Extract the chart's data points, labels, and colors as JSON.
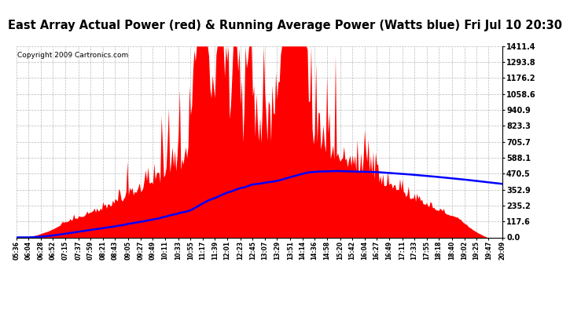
{
  "title": "East Array Actual Power (red) & Running Average Power (Watts blue) Fri Jul 10 20:30",
  "copyright": "Copyright 2009 Cartronics.com",
  "yticks": [
    0.0,
    117.6,
    235.2,
    352.9,
    470.5,
    588.1,
    705.7,
    823.3,
    940.9,
    1058.6,
    1176.2,
    1293.8,
    1411.4
  ],
  "ymax": 1411.4,
  "fill_color": "#ff0000",
  "avg_color": "#0000ff",
  "background_color": "#ffffff",
  "grid_color": "#aaaaaa",
  "title_fontsize": 10.5,
  "copyright_fontsize": 6.5,
  "x_labels": [
    "05:36",
    "06:04",
    "06:28",
    "06:52",
    "07:15",
    "07:37",
    "07:59",
    "08:21",
    "08:43",
    "09:05",
    "09:27",
    "09:49",
    "10:11",
    "10:33",
    "10:55",
    "11:17",
    "11:39",
    "12:01",
    "12:23",
    "12:45",
    "13:07",
    "13:29",
    "13:51",
    "14:14",
    "14:36",
    "14:58",
    "15:20",
    "15:42",
    "16:04",
    "16:27",
    "16:49",
    "17:11",
    "17:33",
    "17:55",
    "18:18",
    "18:40",
    "19:02",
    "19:25",
    "19:47",
    "20:09"
  ]
}
